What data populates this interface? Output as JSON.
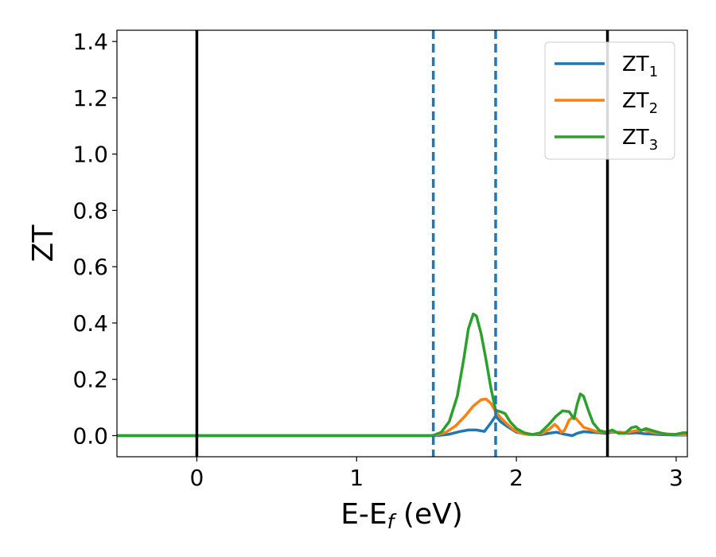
{
  "chart_data": {
    "type": "line",
    "title": "",
    "xlabel_main": "E-E",
    "xlabel_sub": "f",
    "xlabel_unit": " (eV)",
    "ylabel": "ZT",
    "xlim": [
      -0.5,
      3.07
    ],
    "ylim": [
      -0.075,
      1.44
    ],
    "x_ticks": [
      0,
      1,
      2,
      3
    ],
    "x_tick_labels": [
      "0",
      "1",
      "2",
      "3"
    ],
    "y_ticks": [
      0.0,
      0.2,
      0.4,
      0.6,
      0.8,
      1.0,
      1.2,
      1.4
    ],
    "y_tick_labels": [
      "0.0",
      "0.2",
      "0.4",
      "0.6",
      "0.8",
      "1.0",
      "1.2",
      "1.4"
    ],
    "grid": false,
    "legend_position": "top-right",
    "vlines_solid": [
      0.0,
      2.57
    ],
    "vlines_dashed": [
      1.48,
      1.87
    ],
    "vline_solid_color": "#000000",
    "vline_dashed_color": "#1f77b4",
    "series": [
      {
        "name_main": "ZT",
        "name_sub": "1",
        "color": "#1f77b4",
        "points": [
          [
            -0.5,
            0
          ],
          [
            1.45,
            0
          ],
          [
            1.5,
            0.0
          ],
          [
            1.58,
            0.005
          ],
          [
            1.65,
            0.015
          ],
          [
            1.7,
            0.02
          ],
          [
            1.75,
            0.02
          ],
          [
            1.8,
            0.015
          ],
          [
            1.84,
            0.045
          ],
          [
            1.87,
            0.07
          ],
          [
            1.9,
            0.05
          ],
          [
            1.95,
            0.03
          ],
          [
            2.0,
            0.012
          ],
          [
            2.05,
            0.006
          ],
          [
            2.1,
            0.004
          ],
          [
            2.15,
            0.003
          ],
          [
            2.2,
            0.008
          ],
          [
            2.25,
            0.012
          ],
          [
            2.3,
            0.005
          ],
          [
            2.35,
            0.0
          ],
          [
            2.38,
            0.008
          ],
          [
            2.42,
            0.014
          ],
          [
            2.47,
            0.012
          ],
          [
            2.52,
            0.01
          ],
          [
            2.56,
            0.008
          ],
          [
            2.6,
            0.012
          ],
          [
            2.65,
            0.012
          ],
          [
            2.7,
            0.008
          ],
          [
            2.75,
            0.01
          ],
          [
            2.8,
            0.007
          ],
          [
            2.9,
            0.004
          ],
          [
            3.0,
            0.002
          ],
          [
            3.07,
            0.002
          ]
        ]
      },
      {
        "name_main": "ZT",
        "name_sub": "2",
        "color": "#ff7f0e",
        "points": [
          [
            -0.5,
            0
          ],
          [
            1.45,
            0
          ],
          [
            1.5,
            0.002
          ],
          [
            1.56,
            0.012
          ],
          [
            1.62,
            0.035
          ],
          [
            1.68,
            0.07
          ],
          [
            1.73,
            0.105
          ],
          [
            1.78,
            0.128
          ],
          [
            1.81,
            0.13
          ],
          [
            1.84,
            0.115
          ],
          [
            1.87,
            0.085
          ],
          [
            1.9,
            0.065
          ],
          [
            1.94,
            0.042
          ],
          [
            1.98,
            0.022
          ],
          [
            2.02,
            0.01
          ],
          [
            2.07,
            0.004
          ],
          [
            2.12,
            0.004
          ],
          [
            2.17,
            0.01
          ],
          [
            2.21,
            0.025
          ],
          [
            2.24,
            0.04
          ],
          [
            2.26,
            0.03
          ],
          [
            2.28,
            0.012
          ],
          [
            2.3,
            0.018
          ],
          [
            2.33,
            0.055
          ],
          [
            2.36,
            0.068
          ],
          [
            2.39,
            0.05
          ],
          [
            2.42,
            0.03
          ],
          [
            2.46,
            0.022
          ],
          [
            2.5,
            0.015
          ],
          [
            2.55,
            0.012
          ],
          [
            2.6,
            0.014
          ],
          [
            2.65,
            0.01
          ],
          [
            2.7,
            0.012
          ],
          [
            2.75,
            0.018
          ],
          [
            2.8,
            0.02
          ],
          [
            2.85,
            0.012
          ],
          [
            2.9,
            0.008
          ],
          [
            3.0,
            0.004
          ],
          [
            3.07,
            0.003
          ]
        ]
      },
      {
        "name_main": "ZT",
        "name_sub": "3",
        "color": "#2ca02c",
        "points": [
          [
            -0.5,
            0
          ],
          [
            1.45,
            0
          ],
          [
            1.48,
            0.001
          ],
          [
            1.53,
            0.012
          ],
          [
            1.58,
            0.05
          ],
          [
            1.63,
            0.14
          ],
          [
            1.67,
            0.27
          ],
          [
            1.7,
            0.38
          ],
          [
            1.73,
            0.432
          ],
          [
            1.75,
            0.425
          ],
          [
            1.78,
            0.36
          ],
          [
            1.81,
            0.27
          ],
          [
            1.84,
            0.17
          ],
          [
            1.87,
            0.09
          ],
          [
            1.9,
            0.085
          ],
          [
            1.93,
            0.078
          ],
          [
            1.96,
            0.05
          ],
          [
            2.0,
            0.025
          ],
          [
            2.05,
            0.01
          ],
          [
            2.1,
            0.004
          ],
          [
            2.15,
            0.01
          ],
          [
            2.2,
            0.038
          ],
          [
            2.25,
            0.07
          ],
          [
            2.29,
            0.088
          ],
          [
            2.33,
            0.085
          ],
          [
            2.36,
            0.06
          ],
          [
            2.38,
            0.11
          ],
          [
            2.4,
            0.148
          ],
          [
            2.42,
            0.14
          ],
          [
            2.45,
            0.09
          ],
          [
            2.48,
            0.045
          ],
          [
            2.52,
            0.018
          ],
          [
            2.56,
            0.012
          ],
          [
            2.6,
            0.02
          ],
          [
            2.64,
            0.008
          ],
          [
            2.68,
            0.008
          ],
          [
            2.72,
            0.028
          ],
          [
            2.75,
            0.032
          ],
          [
            2.78,
            0.018
          ],
          [
            2.81,
            0.025
          ],
          [
            2.85,
            0.018
          ],
          [
            2.9,
            0.01
          ],
          [
            2.95,
            0.004
          ],
          [
            3.0,
            0.005
          ],
          [
            3.04,
            0.01
          ],
          [
            3.07,
            0.01
          ]
        ]
      }
    ]
  }
}
